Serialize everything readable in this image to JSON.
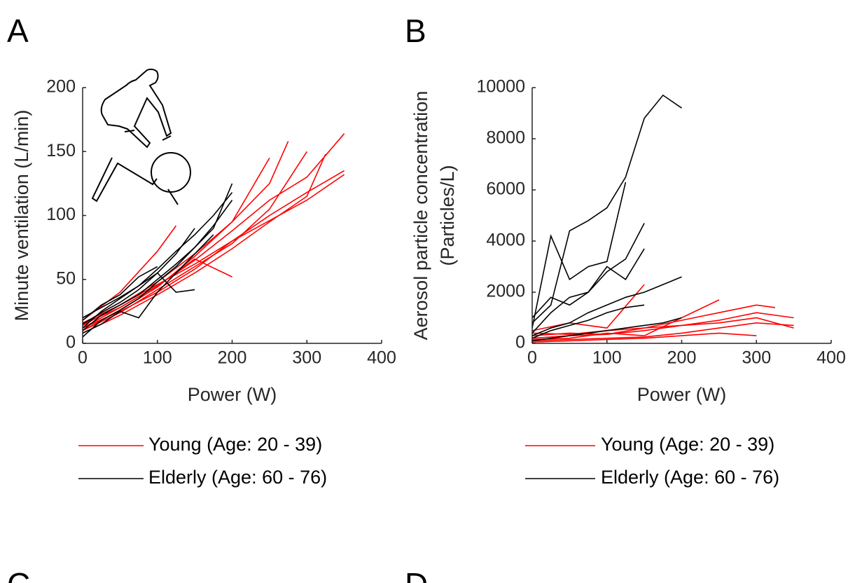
{
  "chart_data": [
    {
      "type": "line",
      "panel": "A",
      "xlabel": "Power (W)",
      "ylabel": [
        "Minute ventilation (L/min)"
      ],
      "xlim": [
        0,
        400
      ],
      "xticks": [
        0,
        100,
        200,
        300,
        400
      ],
      "ylim": [
        0,
        200
      ],
      "yticks": [
        0,
        50,
        100,
        150,
        200
      ],
      "series": [
        {
          "name": "Young (Age: 20 - 39)",
          "color": "#ff0000",
          "lines": [
            {
              "x": [
                0,
                50,
                100,
                150,
                200,
                250,
                300,
                350
              ],
              "values": [
                12,
                25,
                40,
                58,
                80,
                100,
                118,
                135
              ]
            },
            {
              "x": [
                0,
                50,
                100,
                150,
                200,
                250,
                300,
                350
              ],
              "values": [
                15,
                28,
                45,
                65,
                88,
                112,
                130,
                164
              ]
            },
            {
              "x": [
                0,
                50,
                100,
                150,
                200,
                250,
                300
              ],
              "values": [
                10,
                24,
                42,
                60,
                78,
                105,
                150
              ]
            },
            {
              "x": [
                0,
                50,
                100,
                150,
                200,
                250,
                275
              ],
              "values": [
                14,
                30,
                48,
                70,
                95,
                125,
                158
              ]
            },
            {
              "x": [
                0,
                50,
                100,
                125
              ],
              "values": [
                18,
                40,
                72,
                92
              ]
            },
            {
              "x": [
                0,
                50,
                100,
                150,
                200,
                250,
                300,
                325
              ],
              "values": [
                8,
                22,
                38,
                55,
                74,
                95,
                115,
                148
              ]
            },
            {
              "x": [
                0,
                50,
                100,
                150,
                200
              ],
              "values": [
                12,
                28,
                45,
                66,
                52
              ]
            },
            {
              "x": [
                0,
                50,
                100,
                150,
                200,
                250
              ],
              "values": [
                10,
                26,
                44,
                68,
                95,
                145
              ]
            },
            {
              "x": [
                0,
                50,
                100,
                150,
                200,
                250,
                300,
                350
              ],
              "values": [
                16,
                30,
                46,
                62,
                80,
                96,
                112,
                132
              ]
            }
          ]
        },
        {
          "name": "Elderly (Age: 60 - 76)",
          "color": "#000000",
          "lines": [
            {
              "x": [
                0,
                25,
                50,
                75,
                100,
                125,
                150,
                175,
                200
              ],
              "values": [
                10,
                22,
                30,
                38,
                50,
                62,
                75,
                90,
                125
              ]
            },
            {
              "x": [
                0,
                25,
                50,
                75,
                100,
                125,
                150
              ],
              "values": [
                15,
                24,
                32,
                42,
                55,
                70,
                90
              ]
            },
            {
              "x": [
                0,
                25,
                50,
                75,
                100,
                125,
                150,
                175,
                200
              ],
              "values": [
                5,
                18,
                26,
                35,
                48,
                60,
                75,
                92,
                112
              ]
            },
            {
              "x": [
                0,
                25,
                50,
                75,
                100,
                125,
                150
              ],
              "values": [
                20,
                28,
                36,
                45,
                55,
                40,
                42
              ]
            },
            {
              "x": [
                0,
                25,
                50,
                75,
                100,
                125,
                150,
                175
              ],
              "values": [
                8,
                15,
                25,
                20,
                40,
                55,
                70,
                85
              ]
            },
            {
              "x": [
                0,
                25,
                50,
                75,
                100,
                125,
                150,
                175,
                200
              ],
              "values": [
                12,
                25,
                35,
                45,
                58,
                72,
                85,
                100,
                118
              ]
            },
            {
              "x": [
                0,
                25,
                50,
                75,
                100
              ],
              "values": [
                18,
                30,
                38,
                52,
                60
              ]
            }
          ]
        }
      ]
    },
    {
      "type": "line",
      "panel": "B",
      "xlabel": "Power (W)",
      "ylabel": [
        "Aerosol particle concentration",
        "(Particles/L)"
      ],
      "xlim": [
        0,
        400
      ],
      "xticks": [
        0,
        100,
        200,
        300,
        400
      ],
      "ylim": [
        0,
        10000
      ],
      "yticks": [
        0,
        2000,
        4000,
        6000,
        8000,
        10000
      ],
      "series": [
        {
          "name": "Young (Age: 20 - 39)",
          "color": "#ff0000",
          "lines": [
            {
              "x": [
                0,
                50,
                100,
                150,
                200,
                250,
                300,
                350
              ],
              "values": [
                200,
                300,
                350,
                500,
                700,
                900,
                1200,
                1000
              ]
            },
            {
              "x": [
                0,
                50,
                100,
                150,
                200,
                250,
                300,
                350
              ],
              "values": [
                100,
                150,
                200,
                250,
                400,
                600,
                800,
                700
              ]
            },
            {
              "x": [
                0,
                50,
                100,
                150,
                200,
                250,
                300,
                325
              ],
              "values": [
                300,
                400,
                350,
                600,
                900,
                1200,
                1500,
                1400
              ]
            },
            {
              "x": [
                0,
                50,
                100,
                150,
                200,
                250
              ],
              "values": [
                150,
                200,
                400,
                300,
                1000,
                1700
              ]
            },
            {
              "x": [
                0,
                50,
                100,
                150
              ],
              "values": [
                500,
                800,
                600,
                2300
              ]
            },
            {
              "x": [
                0,
                50,
                100,
                150,
                200,
                250,
                300
              ],
              "values": [
                50,
                100,
                150,
                200,
                300,
                400,
                300
              ]
            },
            {
              "x": [
                0,
                50,
                100,
                150,
                200,
                250,
                300,
                350
              ],
              "values": [
                400,
                350,
                500,
                600,
                700,
                800,
                1000,
                600
              ]
            }
          ]
        },
        {
          "name": "Elderly (Age: 60 - 76)",
          "color": "#000000",
          "lines": [
            {
              "x": [
                0,
                25,
                50,
                75,
                100,
                125,
                150,
                175,
                200
              ],
              "values": [
                800,
                1500,
                4400,
                4800,
                5300,
                6500,
                8800,
                9700,
                9200
              ]
            },
            {
              "x": [
                0,
                25,
                50,
                75,
                100,
                125
              ],
              "values": [
                600,
                4200,
                2500,
                3000,
                3200,
                6300
              ]
            },
            {
              "x": [
                0,
                25,
                50,
                75,
                100,
                125,
                150
              ],
              "values": [
                400,
                1200,
                1800,
                2000,
                2800,
                3300,
                4700
              ]
            },
            {
              "x": [
                0,
                25,
                50,
                75,
                100,
                125,
                150,
                175,
                200
              ],
              "values": [
                300,
                600,
                800,
                1200,
                1500,
                1800,
                2000,
                2300,
                2600
              ]
            },
            {
              "x": [
                0,
                25,
                50,
                75,
                100,
                125,
                150
              ],
              "values": [
                200,
                500,
                700,
                900,
                1200,
                1400,
                1500
              ]
            },
            {
              "x": [
                0,
                25,
                50,
                75,
                100,
                125,
                150
              ],
              "values": [
                1000,
                1800,
                1500,
                2000,
                3000,
                2500,
                3700
              ]
            },
            {
              "x": [
                0,
                25,
                50,
                75,
                100,
                125,
                150,
                175,
                200
              ],
              "values": [
                100,
                200,
                300,
                400,
                500,
                600,
                700,
                800,
                1000
              ]
            }
          ]
        }
      ]
    }
  ],
  "panels_below": [
    "C",
    "D"
  ]
}
